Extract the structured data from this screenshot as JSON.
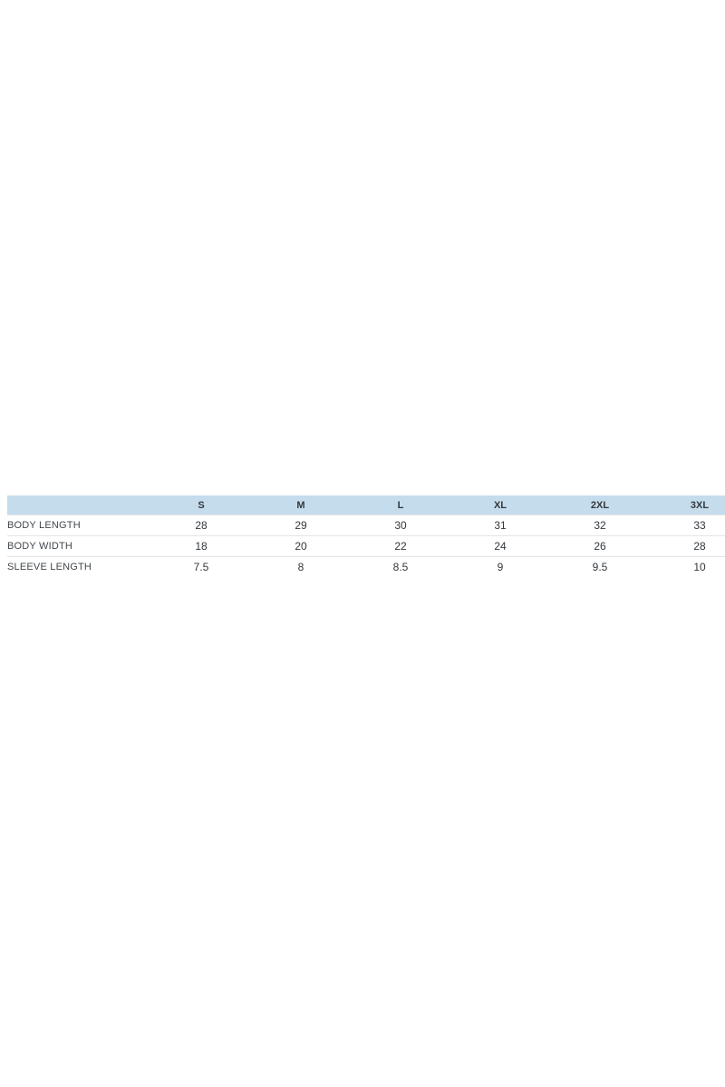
{
  "page": {
    "background_color": "#ffffff"
  },
  "size_chart": {
    "columns": [
      "",
      "S",
      "M",
      "L",
      "XL",
      "2XL",
      "3XL"
    ],
    "rows": [
      {
        "label": "BODY LENGTH",
        "values": [
          "28",
          "29",
          "30",
          "31",
          "32",
          "33"
        ]
      },
      {
        "label": "BODY WIDTH",
        "values": [
          "18",
          "20",
          "22",
          "24",
          "26",
          "28"
        ]
      },
      {
        "label": "SLEEVE LENGTH",
        "values": [
          "7.5",
          "8",
          "8.5",
          "9",
          "9.5",
          "10"
        ]
      }
    ],
    "colors": {
      "header_background": "#c5dcec",
      "header_text": "#33383d",
      "label_text": "#42474c",
      "value_text": "#33383d",
      "row_border": "#e4e5e6"
    }
  },
  "chart_data": {
    "type": "table",
    "title": "",
    "columns": [
      "",
      "S",
      "M",
      "L",
      "XL",
      "2XL",
      "3XL"
    ],
    "rows": [
      [
        "BODY LENGTH",
        28,
        29,
        30,
        31,
        32,
        33
      ],
      [
        "BODY WIDTH",
        18,
        20,
        22,
        24,
        26,
        28
      ],
      [
        "SLEEVE LENGTH",
        7.5,
        8,
        8.5,
        9,
        9.5,
        10
      ]
    ],
    "layout": {
      "header_fill": "#c5dcec",
      "grid": "horizontal-only",
      "last_column_clipped_at_right_edge": true
    }
  }
}
